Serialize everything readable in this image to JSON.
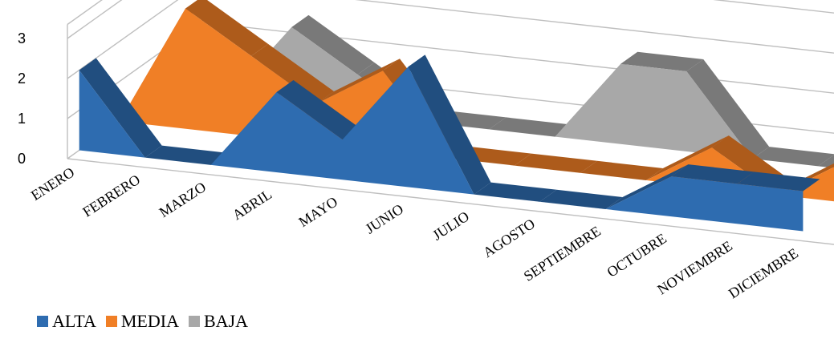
{
  "chart_data": {
    "type": "area",
    "view": "3d",
    "categories": [
      "ENERO",
      "FEBRERO",
      "MARZO",
      "ABRIL",
      "MAYO",
      "JUNIO",
      "JULIO",
      "AGOSTO",
      "SEPTIEMBRE",
      "OCTUBRE",
      "NOVIEMBRE",
      "DICIEMBRE"
    ],
    "series": [
      {
        "name": "ALTA",
        "color": "#2E6CB0",
        "values": [
          2,
          0,
          0,
          2,
          1,
          3,
          0,
          0,
          0,
          1,
          1,
          1
        ]
      },
      {
        "name": "MEDIA",
        "color": "#F07F26",
        "values": [
          0,
          3,
          2,
          1,
          2,
          0,
          0,
          0,
          0,
          1,
          0,
          1
        ]
      },
      {
        "name": "BAJA",
        "color": "#A8A8A8",
        "values": [
          0,
          0,
          2,
          1,
          0,
          0,
          0,
          2,
          2,
          0,
          0,
          0
        ]
      }
    ],
    "y_ticks": [
      "0",
      "1",
      "2",
      "3"
    ],
    "ylim": [
      0,
      3
    ],
    "grid": true,
    "legend_position": "bottom-left"
  }
}
